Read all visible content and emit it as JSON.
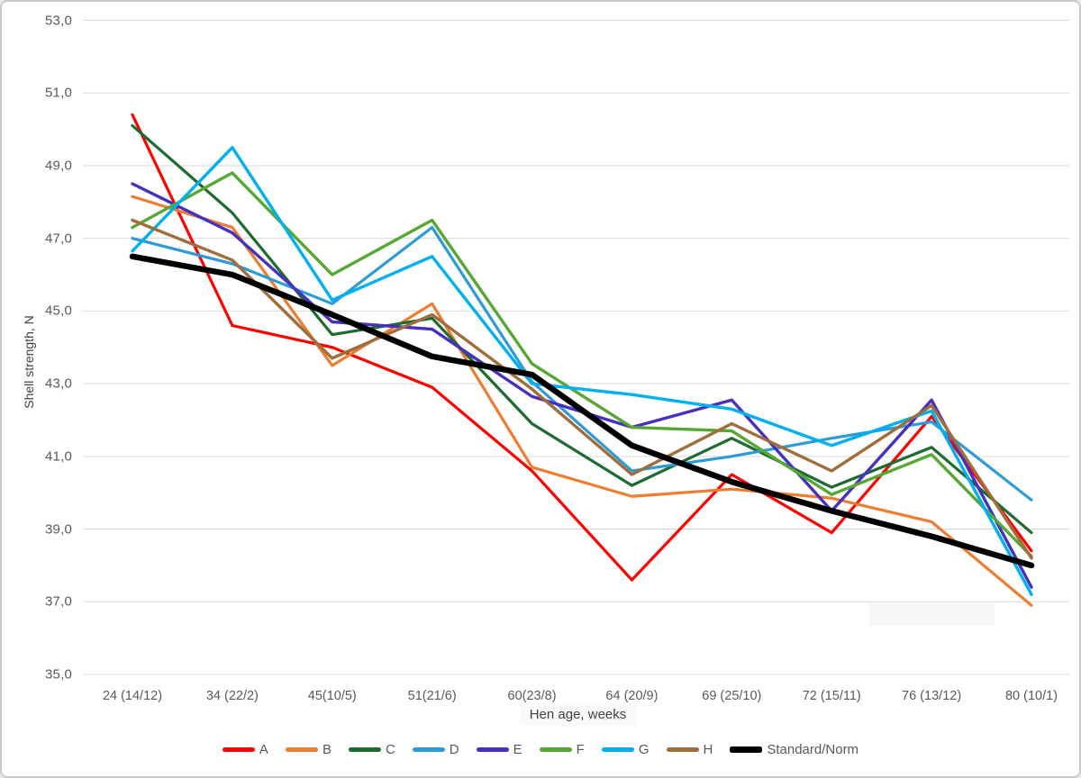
{
  "chart_data": {
    "type": "line",
    "title": "",
    "xlabel": "Hen age, weeks",
    "ylabel": "Shell strength, N",
    "ylim": [
      35,
      53
    ],
    "grid": "horizontal-only",
    "legend_position": "bottom",
    "decimal_separator": ",",
    "ytick_values": [
      35,
      37,
      39,
      41,
      43,
      45,
      47,
      49,
      51,
      53
    ],
    "ytick_labels": [
      "35,0",
      "37,0",
      "39,0",
      "41,0",
      "43,0",
      "45,0",
      "47,0",
      "49,0",
      "51,0",
      "53,0"
    ],
    "categories": [
      "24 (14/12)",
      "34 (22/2)",
      "45(10/5)",
      "51(21/6)",
      "60(23/8)",
      "64 (20/9)",
      "69 (25/10)",
      "72 (15/11)",
      "76 (13/12)",
      "80 (10/1)"
    ],
    "series": [
      {
        "name": "A",
        "color": "#FF0000",
        "width": 3.2,
        "values": [
          50.4,
          44.6,
          44.0,
          42.9,
          40.6,
          37.6,
          40.5,
          38.9,
          42.1,
          38.4
        ]
      },
      {
        "name": "B",
        "color": "#ED7D31",
        "width": 3.2,
        "values": [
          48.15,
          47.3,
          43.5,
          45.2,
          40.7,
          39.9,
          40.1,
          39.85,
          39.2,
          36.9
        ]
      },
      {
        "name": "C",
        "color": "#1E6B30",
        "width": 3.2,
        "values": [
          50.1,
          47.7,
          44.35,
          44.8,
          41.9,
          40.2,
          41.5,
          40.15,
          41.25,
          38.9
        ]
      },
      {
        "name": "D",
        "color": "#2E9BD5",
        "width": 3.2,
        "values": [
          47.0,
          46.3,
          45.2,
          47.3,
          43.05,
          40.6,
          41.0,
          41.5,
          41.95,
          39.8
        ]
      },
      {
        "name": "E",
        "color": "#4630BF",
        "width": 3.4,
        "values": [
          48.5,
          47.15,
          44.7,
          44.5,
          42.65,
          41.8,
          42.55,
          39.5,
          42.55,
          37.4
        ]
      },
      {
        "name": "F",
        "color": "#56A733",
        "width": 3.4,
        "values": [
          47.3,
          48.8,
          46.0,
          47.5,
          43.55,
          41.8,
          41.7,
          39.95,
          41.05,
          38.25
        ]
      },
      {
        "name": "G",
        "color": "#00B0F0",
        "width": 3.4,
        "values": [
          46.65,
          49.5,
          45.3,
          46.5,
          43.0,
          42.7,
          42.3,
          41.3,
          42.25,
          37.2
        ]
      },
      {
        "name": "H",
        "color": "#A06E3C",
        "width": 3.4,
        "values": [
          47.5,
          46.4,
          43.7,
          44.9,
          42.85,
          40.5,
          41.9,
          40.6,
          42.4,
          38.2
        ]
      },
      {
        "name": "Standard/Norm",
        "color": "#000000",
        "width": 6.5,
        "values": [
          46.5,
          46.0,
          44.9,
          43.75,
          43.25,
          41.3,
          40.3,
          39.5,
          38.8,
          38.0
        ]
      }
    ]
  }
}
